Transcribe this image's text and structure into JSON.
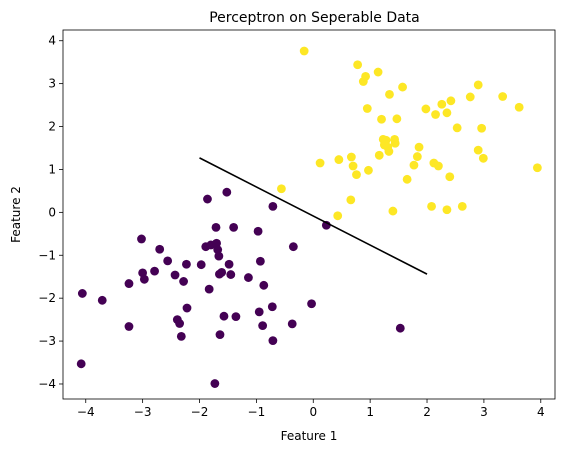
{
  "chart_data": {
    "type": "scatter",
    "title": "Perceptron on Seperable Data",
    "xlabel": "Feature 1",
    "ylabel": "Feature 2",
    "xlim": [
      -4.4,
      4.25
    ],
    "ylim": [
      -4.35,
      4.25
    ],
    "xticks": [
      -4,
      -3,
      -2,
      -1,
      0,
      1,
      2,
      3,
      4
    ],
    "yticks": [
      -4,
      -3,
      -2,
      -1,
      0,
      1,
      2,
      3,
      4
    ],
    "grid": false,
    "colors": {
      "class_0": "#440154",
      "class_1": "#fde725",
      "decision_line": "#000000"
    },
    "series": [
      {
        "color": "#440154",
        "points": [
          [
            -4.06,
            -1.89
          ],
          [
            -4.08,
            -3.53
          ],
          [
            -3.71,
            -2.05
          ],
          [
            -3.24,
            -1.66
          ],
          [
            -3.24,
            -2.66
          ],
          [
            -3.02,
            -0.62
          ],
          [
            -3.0,
            -1.41
          ],
          [
            -2.97,
            -1.56
          ],
          [
            -2.79,
            -1.37
          ],
          [
            -2.7,
            -0.86
          ],
          [
            -2.56,
            -1.13
          ],
          [
            -2.43,
            -1.46
          ],
          [
            -2.39,
            -2.5
          ],
          [
            -2.35,
            -2.59
          ],
          [
            -2.32,
            -2.89
          ],
          [
            -2.28,
            -1.61
          ],
          [
            -2.23,
            -1.21
          ],
          [
            -2.22,
            -2.23
          ],
          [
            -1.97,
            -1.22
          ],
          [
            -1.89,
            -0.8
          ],
          [
            -1.86,
            0.31
          ],
          [
            -1.83,
            -1.79
          ],
          [
            -1.8,
            -0.76
          ],
          [
            -1.73,
            -3.99
          ],
          [
            -1.71,
            -0.35
          ],
          [
            -1.7,
            -0.72
          ],
          [
            -1.68,
            -0.87
          ],
          [
            -1.66,
            -1.02
          ],
          [
            -1.65,
            -1.44
          ],
          [
            -1.64,
            -2.85
          ],
          [
            -1.61,
            -1.4
          ],
          [
            -1.57,
            -2.42
          ],
          [
            -1.52,
            0.47
          ],
          [
            -1.48,
            -1.21
          ],
          [
            -1.45,
            -1.45
          ],
          [
            -1.4,
            -0.35
          ],
          [
            -1.36,
            -2.43
          ],
          [
            -1.14,
            -1.52
          ],
          [
            -0.97,
            -0.44
          ],
          [
            -0.95,
            -2.32
          ],
          [
            -0.93,
            -1.14
          ],
          [
            -0.89,
            -2.64
          ],
          [
            -0.87,
            -1.7
          ],
          [
            -0.72,
            -2.2
          ],
          [
            -0.71,
            0.14
          ],
          [
            -0.71,
            -2.99
          ],
          [
            -0.37,
            -2.6
          ],
          [
            -0.35,
            -0.8
          ],
          [
            -0.03,
            -2.13
          ],
          [
            0.23,
            -0.3
          ],
          [
            1.53,
            -2.7
          ]
        ]
      },
      {
        "color": "#fde725",
        "points": [
          [
            -0.16,
            3.76
          ],
          [
            -0.56,
            0.55
          ],
          [
            0.12,
            1.15
          ],
          [
            0.43,
            -0.08
          ],
          [
            0.45,
            1.23
          ],
          [
            0.66,
            0.29
          ],
          [
            0.67,
            1.29
          ],
          [
            0.7,
            1.08
          ],
          [
            0.76,
            0.88
          ],
          [
            0.78,
            3.44
          ],
          [
            0.88,
            3.05
          ],
          [
            0.92,
            3.17
          ],
          [
            0.95,
            2.42
          ],
          [
            0.97,
            0.98
          ],
          [
            1.14,
            3.27
          ],
          [
            1.16,
            1.33
          ],
          [
            1.2,
            2.17
          ],
          [
            1.23,
            1.7
          ],
          [
            1.25,
            1.57
          ],
          [
            1.28,
            1.68
          ],
          [
            1.31,
            1.52
          ],
          [
            1.33,
            1.42
          ],
          [
            1.34,
            2.75
          ],
          [
            1.4,
            0.03
          ],
          [
            1.43,
            1.7
          ],
          [
            1.44,
            1.61
          ],
          [
            1.47,
            2.18
          ],
          [
            1.57,
            2.92
          ],
          [
            1.65,
            0.77
          ],
          [
            1.77,
            1.1
          ],
          [
            1.83,
            1.3
          ],
          [
            1.86,
            1.52
          ],
          [
            1.98,
            2.41
          ],
          [
            2.08,
            0.14
          ],
          [
            2.12,
            1.15
          ],
          [
            2.15,
            2.28
          ],
          [
            2.2,
            1.08
          ],
          [
            2.26,
            2.52
          ],
          [
            2.35,
            0.06
          ],
          [
            2.35,
            2.32
          ],
          [
            2.4,
            0.83
          ],
          [
            2.42,
            2.6
          ],
          [
            2.53,
            1.97
          ],
          [
            2.62,
            0.14
          ],
          [
            2.76,
            2.69
          ],
          [
            2.9,
            1.45
          ],
          [
            2.9,
            2.97
          ],
          [
            2.96,
            1.96
          ],
          [
            2.99,
            1.26
          ],
          [
            3.33,
            2.7
          ],
          [
            3.62,
            2.45
          ],
          [
            3.94,
            1.04
          ]
        ]
      }
    ],
    "decision_line": {
      "x": [
        -2.0,
        2.0
      ],
      "y": [
        1.27,
        -1.44
      ]
    }
  }
}
